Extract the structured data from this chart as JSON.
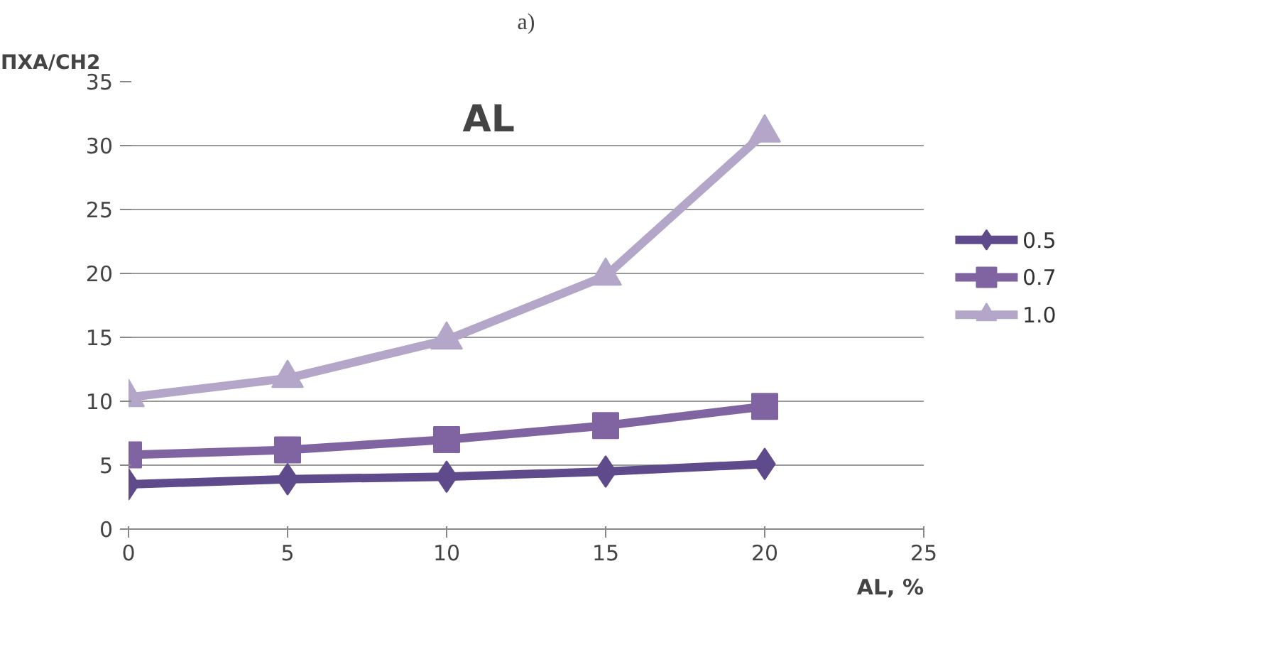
{
  "chart_data": {
    "type": "line",
    "title": "a)",
    "xlabel": "AL, %",
    "ylabel": "ПХА/СН2",
    "annotations": [
      "AL"
    ],
    "x": [
      0,
      5,
      10,
      15,
      20
    ],
    "series": [
      {
        "name": "0.5",
        "color": "#5f4b8b",
        "marker": "diamond",
        "values": [
          3.5,
          3.9,
          4.1,
          4.5,
          5.1
        ]
      },
      {
        "name": "0.7",
        "color": "#8064a2",
        "marker": "square",
        "values": [
          5.8,
          6.2,
          7.0,
          8.1,
          9.6
        ]
      },
      {
        "name": "1.0",
        "color": "#b3a6c8",
        "marker": "triangle",
        "values": [
          10.3,
          11.8,
          14.8,
          19.8,
          31.0
        ]
      }
    ],
    "xlim": [
      0,
      25
    ],
    "ylim": [
      0,
      35
    ],
    "xticks": [
      0,
      5,
      10,
      15,
      20,
      25
    ],
    "yticks": [
      0,
      5,
      10,
      15,
      20,
      25,
      30,
      35
    ],
    "grid": "y",
    "legend": "right",
    "line_style": "solid"
  }
}
